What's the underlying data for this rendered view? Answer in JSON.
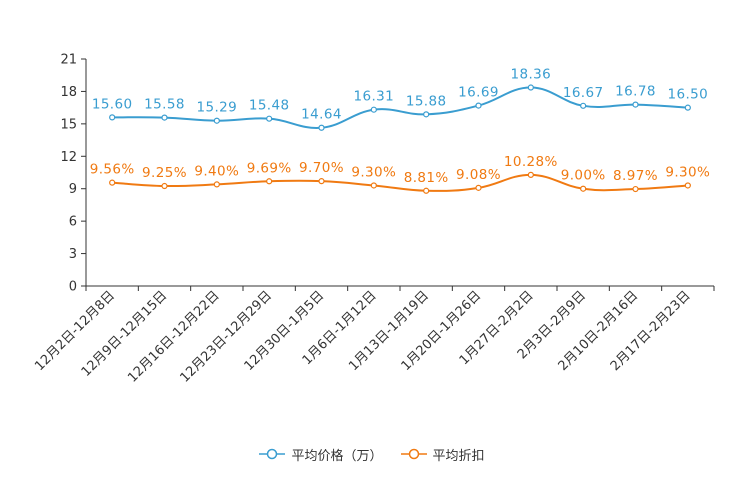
{
  "chart_data": {
    "type": "line",
    "title": "",
    "xlabel": "",
    "ylabel": "",
    "ylim": [
      0,
      21
    ],
    "yticks": [
      "0",
      "3",
      "6",
      "9",
      "12",
      "15",
      "18",
      "21"
    ],
    "categories": [
      "12月2日-12月8日",
      "12月9日-12月15日",
      "12月16日-12月22日",
      "12月23日-12月29日",
      "12月30日-1月5日",
      "1月6日-1月12日",
      "1月13日-1月19日",
      "1月20日-1月26日",
      "1月27日-2月2日",
      "2月3日-2月9日",
      "2月10日-2月16日",
      "2月17日-2月23日"
    ],
    "series": [
      {
        "name": "平均价格（万）",
        "color": "#3a9dd0",
        "values": [
          15.6,
          15.58,
          15.29,
          15.48,
          14.64,
          16.31,
          15.88,
          16.69,
          18.36,
          16.67,
          16.78,
          16.5
        ],
        "labels": [
          "15.60",
          "15.58",
          "15.29",
          "15.48",
          "14.64",
          "16.31",
          "15.88",
          "16.69",
          "18.36",
          "16.67",
          "16.78",
          "16.50"
        ]
      },
      {
        "name": "平均折扣",
        "color": "#f07a12",
        "values": [
          9.56,
          9.25,
          9.4,
          9.69,
          9.7,
          9.3,
          8.81,
          9.08,
          10.28,
          9.0,
          8.97,
          9.3
        ],
        "labels": [
          "9.56%",
          "9.25%",
          "9.40%",
          "9.69%",
          "9.70%",
          "9.30%",
          "8.81%",
          "9.08%",
          "10.28%",
          "9.00%",
          "8.97%",
          "9.30%"
        ]
      }
    ],
    "legend_position": "bottom"
  }
}
